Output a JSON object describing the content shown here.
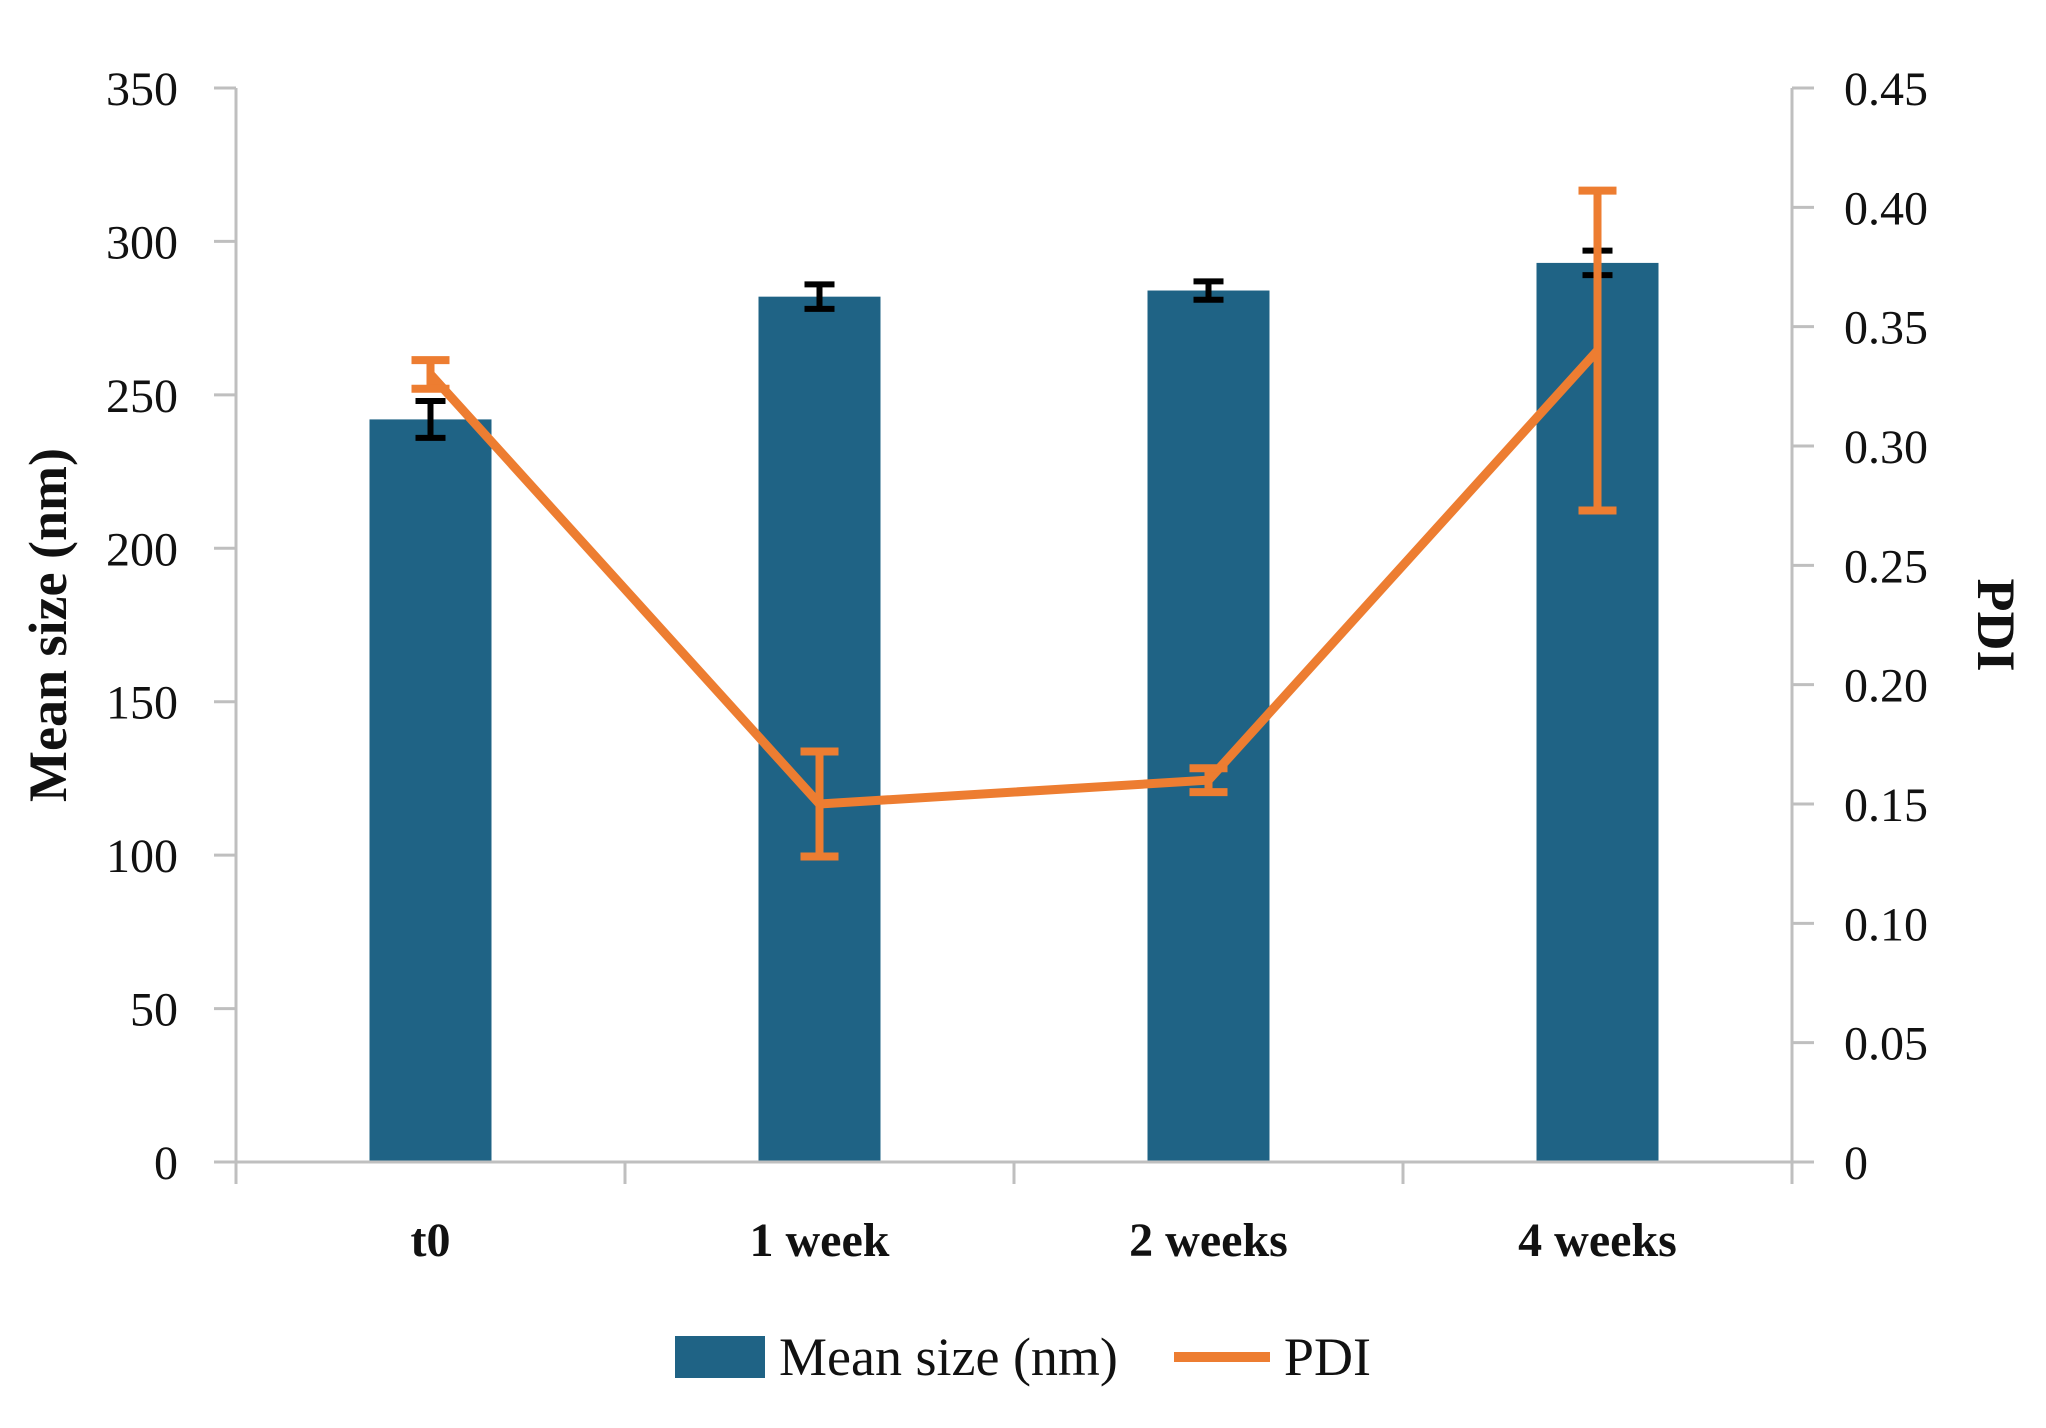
{
  "chart_data": {
    "type": "combo-bar-line-dual-axis",
    "title": "",
    "categories": [
      "t0",
      "1 week",
      "2 weeks",
      "4 weeks"
    ],
    "series": [
      {
        "name": "Mean size (nm)",
        "type": "bar",
        "axis": "left",
        "color": "#1F6385",
        "error_color": "#000000",
        "values": [
          242,
          282,
          284,
          293
        ],
        "errors": [
          6,
          4,
          3,
          4
        ]
      },
      {
        "name": "PDI",
        "type": "line",
        "axis": "right",
        "color": "#ED7D31",
        "error_color": "#ED7D31",
        "values": [
          0.33,
          0.15,
          0.16,
          0.34
        ],
        "errors": [
          0.006,
          0.022,
          0.005,
          0.067
        ]
      }
    ],
    "left_axis": {
      "label": "Mean size (nm)",
      "min": 0,
      "max": 350,
      "tick_step": 50,
      "tick_labels": [
        "0",
        "50",
        "100",
        "150",
        "200",
        "250",
        "300",
        "350"
      ]
    },
    "right_axis": {
      "label": "PDI",
      "min": 0,
      "max": 0.45,
      "tick_step": 0.05,
      "tick_labels": [
        "0",
        "0.05",
        "0.10",
        "0.15",
        "0.20",
        "0.25",
        "0.30",
        "0.35",
        "0.40",
        "0.45"
      ]
    },
    "grid": false,
    "legend_position": "bottom",
    "axis_color": "#BFBFBF",
    "text_color": "#111111",
    "background": "#FFFFFF"
  }
}
